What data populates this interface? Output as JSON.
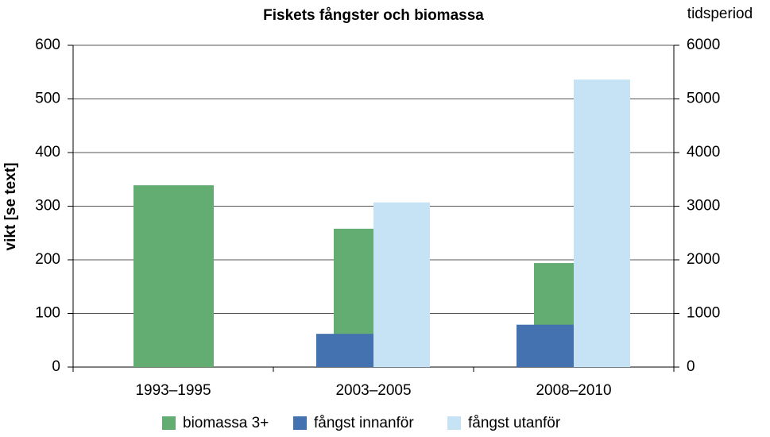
{
  "chart_data": {
    "type": "bar",
    "title": "Fiskets fångster och biomassa",
    "xlabel": "tidsperiod",
    "ylabel": "vikt [se text]",
    "categories": [
      "1993–1995",
      "2003–2005",
      "2008–2010"
    ],
    "series": [
      {
        "name": "biomassa 3+",
        "color": "#63ad72",
        "values": [
          339,
          258,
          194
        ]
      },
      {
        "name": "fångst innanför",
        "color": "#4472b0",
        "values": [
          null,
          620,
          790
        ],
        "axis": "y2"
      },
      {
        "name": "fångst utanför",
        "color": "#c6e3f5",
        "values": [
          null,
          3070,
          5360
        ],
        "axis": "y2"
      }
    ],
    "ylim": [
      0,
      600
    ],
    "yticks": [
      0,
      100,
      200,
      300,
      400,
      500,
      600
    ],
    "y2lim": [
      0,
      6000
    ],
    "y2ticks": [
      0,
      1000,
      2000,
      3000,
      4000,
      5000,
      6000
    ],
    "grid": true,
    "legend": "bottom"
  }
}
